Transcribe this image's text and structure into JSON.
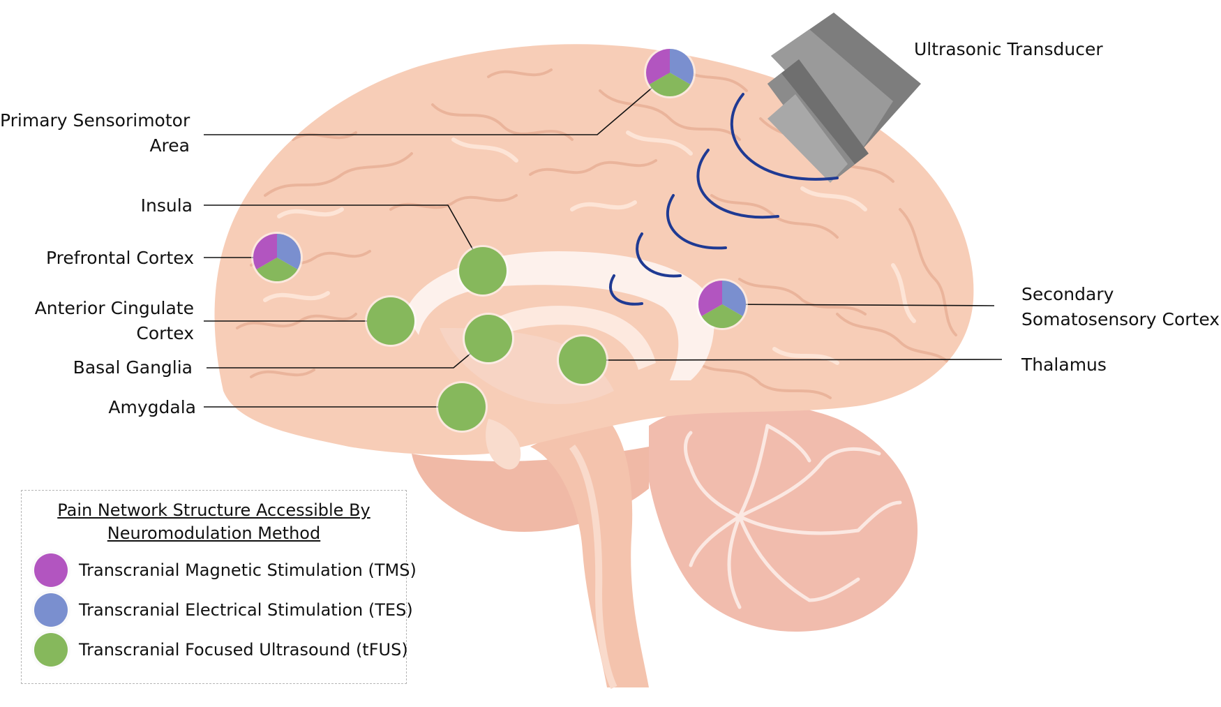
{
  "colors": {
    "tms": "#b255c0",
    "tes": "#7a8fcf",
    "tfus": "#86b85c",
    "brain": "#f7cdb7",
    "brain_gyri": "#fbdcca",
    "brain_sulci": "#eab49b",
    "cerebellum": "#f3c0b2",
    "brainstem": "#f5c6b0",
    "transducer": "#8c8c8c",
    "wave": "#1f3a93"
  },
  "labels": {
    "transducer": "Ultrasonic Transducer",
    "primary_sensorimotor_1": "Primary Sensorimotor",
    "primary_sensorimotor_2": "Area",
    "insula": "Insula",
    "prefrontal": "Prefrontal Cortex",
    "anterior_cingulate_1": "Anterior Cingulate",
    "anterior_cingulate_2": "Cortex",
    "basal_ganglia": "Basal Ganglia",
    "amygdala": "Amygdala",
    "secondary_somatosensory_1": "Secondary",
    "secondary_somatosensory_2": "Somatosensory Cortex",
    "thalamus": "Thalamus"
  },
  "legend": {
    "title_line1": "Pain Network Structure Accessible By",
    "title_line2": "Neuromodulation Method",
    "items": [
      {
        "label": "Transcranial Magnetic Stimulation (TMS)",
        "color_key": "tms"
      },
      {
        "label": "Transcranial Electrical Stimulation (TES)",
        "color_key": "tes"
      },
      {
        "label": "Transcranial Focused Ultrasound (tFUS)",
        "color_key": "tfus"
      }
    ]
  }
}
